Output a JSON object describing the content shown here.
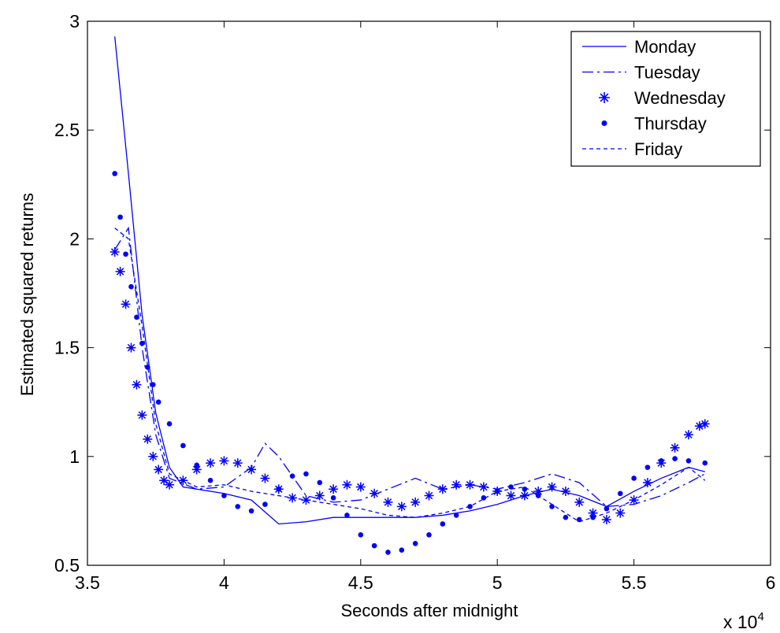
{
  "chart_data": {
    "type": "line",
    "title": "",
    "xlabel": "Seconds after midnight",
    "ylabel": "Estimated squared returns",
    "x_multiplier_label": "x 10",
    "x_multiplier_exponent": "4",
    "xlim": [
      3.5,
      6
    ],
    "ylim": [
      0.5,
      3
    ],
    "xticks": [
      3.5,
      4,
      4.5,
      5,
      5.5,
      6
    ],
    "yticks": [
      0.5,
      1,
      1.5,
      2,
      2.5,
      3
    ],
    "xtick_labels": [
      "3.5",
      "4",
      "4.5",
      "5",
      "5.5",
      "6"
    ],
    "ytick_labels": [
      "0.5",
      "1",
      "1.5",
      "2",
      "2.5",
      "3"
    ],
    "legend_position": "top-right",
    "color": "#0000ff",
    "series": [
      {
        "name": "Monday",
        "style": "solid",
        "x": [
          3.6,
          3.65,
          3.7,
          3.75,
          3.8,
          3.85,
          3.9,
          4.0,
          4.1,
          4.2,
          4.3,
          4.4,
          4.5,
          4.6,
          4.7,
          4.8,
          4.9,
          5.0,
          5.1,
          5.2,
          5.3,
          5.4,
          5.5,
          5.6,
          5.7,
          5.76
        ],
        "y": [
          2.93,
          2.3,
          1.65,
          1.2,
          0.95,
          0.86,
          0.85,
          0.83,
          0.8,
          0.69,
          0.7,
          0.72,
          0.72,
          0.72,
          0.72,
          0.73,
          0.75,
          0.78,
          0.82,
          0.85,
          0.82,
          0.77,
          0.84,
          0.9,
          0.95,
          0.93
        ]
      },
      {
        "name": "Tuesday",
        "style": "dashdot",
        "x": [
          3.6,
          3.65,
          3.7,
          3.75,
          3.8,
          3.9,
          4.0,
          4.1,
          4.15,
          4.2,
          4.3,
          4.4,
          4.5,
          4.6,
          4.7,
          4.8,
          4.9,
          5.0,
          5.1,
          5.2,
          5.3,
          5.4,
          5.5,
          5.6,
          5.7,
          5.76
        ],
        "y": [
          1.95,
          2.05,
          1.5,
          1.1,
          0.9,
          0.85,
          0.86,
          0.95,
          1.06,
          1.0,
          0.82,
          0.79,
          0.8,
          0.85,
          0.9,
          0.85,
          0.87,
          0.85,
          0.88,
          0.92,
          0.88,
          0.77,
          0.78,
          0.82,
          0.88,
          0.92
        ]
      },
      {
        "name": "Wednesday",
        "style": "star",
        "x": [
          3.6,
          3.62,
          3.64,
          3.66,
          3.68,
          3.7,
          3.72,
          3.74,
          3.76,
          3.78,
          3.8,
          3.85,
          3.9,
          3.95,
          4.0,
          4.05,
          4.1,
          4.15,
          4.2,
          4.25,
          4.3,
          4.35,
          4.4,
          4.45,
          4.5,
          4.55,
          4.6,
          4.65,
          4.7,
          4.75,
          4.8,
          4.85,
          4.9,
          4.95,
          5.0,
          5.05,
          5.1,
          5.15,
          5.2,
          5.25,
          5.3,
          5.35,
          5.4,
          5.45,
          5.5,
          5.55,
          5.6,
          5.65,
          5.7,
          5.74,
          5.76
        ],
        "y": [
          1.94,
          1.85,
          1.7,
          1.5,
          1.33,
          1.19,
          1.08,
          1.0,
          0.94,
          0.89,
          0.87,
          0.89,
          0.94,
          0.97,
          0.98,
          0.97,
          0.94,
          0.9,
          0.85,
          0.81,
          0.8,
          0.82,
          0.85,
          0.87,
          0.86,
          0.83,
          0.79,
          0.77,
          0.79,
          0.82,
          0.85,
          0.87,
          0.87,
          0.86,
          0.84,
          0.82,
          0.82,
          0.84,
          0.86,
          0.84,
          0.79,
          0.74,
          0.71,
          0.74,
          0.8,
          0.88,
          0.97,
          1.04,
          1.1,
          1.14,
          1.15
        ]
      },
      {
        "name": "Thursday",
        "style": "dot",
        "x": [
          3.6,
          3.62,
          3.64,
          3.66,
          3.68,
          3.7,
          3.72,
          3.74,
          3.76,
          3.8,
          3.85,
          3.9,
          3.95,
          4.0,
          4.05,
          4.1,
          4.15,
          4.2,
          4.25,
          4.3,
          4.35,
          4.4,
          4.45,
          4.5,
          4.55,
          4.6,
          4.65,
          4.7,
          4.75,
          4.8,
          4.85,
          4.9,
          4.95,
          5.0,
          5.05,
          5.1,
          5.15,
          5.2,
          5.25,
          5.3,
          5.35,
          5.4,
          5.45,
          5.5,
          5.55,
          5.6,
          5.65,
          5.7,
          5.76
        ],
        "y": [
          2.3,
          2.1,
          1.93,
          1.78,
          1.64,
          1.52,
          1.41,
          1.33,
          1.25,
          1.15,
          1.05,
          0.96,
          0.89,
          0.82,
          0.77,
          0.75,
          0.78,
          0.85,
          0.91,
          0.92,
          0.88,
          0.81,
          0.73,
          0.64,
          0.59,
          0.56,
          0.57,
          0.6,
          0.64,
          0.69,
          0.73,
          0.77,
          0.81,
          0.84,
          0.86,
          0.85,
          0.82,
          0.77,
          0.72,
          0.71,
          0.72,
          0.76,
          0.83,
          0.9,
          0.95,
          0.98,
          0.99,
          0.98,
          0.97
        ]
      },
      {
        "name": "Friday",
        "style": "dashed",
        "x": [
          3.6,
          3.65,
          3.7,
          3.75,
          3.8,
          3.9,
          4.0,
          4.1,
          4.2,
          4.3,
          4.4,
          4.5,
          4.6,
          4.7,
          4.8,
          4.9,
          5.0,
          5.1,
          5.2,
          5.3,
          5.4,
          5.5,
          5.6,
          5.7,
          5.76
        ],
        "y": [
          2.05,
          2.0,
          1.6,
          1.15,
          0.92,
          0.86,
          0.87,
          0.84,
          0.82,
          0.8,
          0.78,
          0.76,
          0.73,
          0.72,
          0.74,
          0.77,
          0.84,
          0.86,
          0.78,
          0.7,
          0.74,
          0.8,
          0.87,
          0.95,
          0.89
        ]
      }
    ]
  }
}
